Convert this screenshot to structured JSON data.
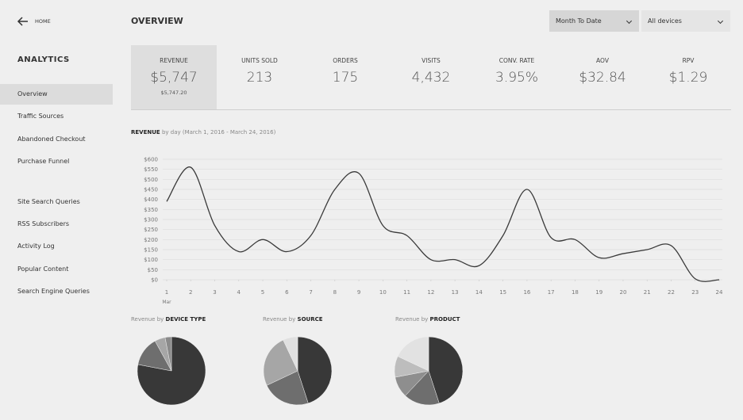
{
  "nav": {
    "back": "HOME",
    "section": "ANALYTICS",
    "groups": [
      [
        {
          "label": "Overview",
          "selected": true
        },
        {
          "label": "Traffic Sources"
        },
        {
          "label": "Abandoned Checkout"
        },
        {
          "label": "Purchase Funnel"
        }
      ],
      [
        {
          "label": "Site Search Queries"
        },
        {
          "label": "RSS Subscribers"
        },
        {
          "label": "Activity Log"
        },
        {
          "label": "Popular Content"
        },
        {
          "label": "Search Engine Queries"
        }
      ]
    ]
  },
  "header": {
    "title": "OVERVIEW",
    "filters": [
      "Month To Date",
      "All devices"
    ]
  },
  "metrics": [
    {
      "label": "REVENUE",
      "value": "$5,747",
      "detail": "$5,747.20",
      "selected": true
    },
    {
      "label": "UNITS SOLD",
      "value": "213"
    },
    {
      "label": "ORDERS",
      "value": "175"
    },
    {
      "label": "VISITS",
      "value": "4,432"
    },
    {
      "label": "CONV. RATE",
      "value": "3.95%"
    },
    {
      "label": "AOV",
      "value": "$32.84"
    },
    {
      "label": "RPV",
      "value": "$1.29"
    }
  ],
  "chart_data": [
    {
      "type": "line",
      "title": "REVENUE",
      "subtitle": "by day (March 1, 2016 - March 24, 2016)",
      "x": [
        1,
        2,
        3,
        4,
        5,
        6,
        7,
        8,
        9,
        10,
        11,
        12,
        13,
        14,
        15,
        16,
        17,
        18,
        19,
        20,
        21,
        22,
        23,
        24
      ],
      "values": [
        390,
        560,
        270,
        140,
        200,
        140,
        220,
        450,
        530,
        270,
        220,
        100,
        100,
        70,
        220,
        450,
        210,
        200,
        110,
        130,
        150,
        170,
        5,
        0
      ],
      "color": "#3a3a3a",
      "grid": true,
      "annotation": "Mar",
      "xlim": [
        1,
        24
      ],
      "xticks": [
        1,
        2,
        3,
        4,
        5,
        6,
        7,
        8,
        9,
        10,
        11,
        12,
        13,
        14,
        15,
        16,
        17,
        18,
        19,
        20,
        21,
        22,
        23,
        24
      ],
      "ylim": [
        0,
        600
      ],
      "yticks": [
        {
          "value": 0,
          "label": "$0"
        },
        {
          "value": 50,
          "label": "$50"
        },
        {
          "value": 100,
          "label": "$100"
        },
        {
          "value": 150,
          "label": "$150"
        },
        {
          "value": 200,
          "label": "$200"
        },
        {
          "value": 250,
          "label": "$250"
        },
        {
          "value": 300,
          "label": "$300"
        },
        {
          "value": 350,
          "label": "$350"
        },
        {
          "value": 400,
          "label": "$400"
        },
        {
          "value": 450,
          "label": "$450"
        },
        {
          "value": 500,
          "label": "$500"
        },
        {
          "value": 550,
          "label": "$550"
        },
        {
          "value": 600,
          "label": "$600"
        }
      ]
    },
    {
      "type": "pie",
      "title_lead": "Revenue by",
      "title": "DEVICE TYPE",
      "values": [
        78,
        14,
        5,
        3
      ],
      "colors": [
        "#383838",
        "#6e6e6e",
        "#a6a6a6",
        "#8a8a8a"
      ]
    },
    {
      "type": "pie",
      "title_lead": "Revenue by",
      "title": "SOURCE",
      "values": [
        45,
        23,
        25,
        7
      ],
      "colors": [
        "#383838",
        "#6e6e6e",
        "#a6a6a6",
        "#e0e0e0"
      ]
    },
    {
      "type": "pie",
      "title_lead": "Revenue by",
      "title": "PRODUCT",
      "values": [
        45,
        17,
        10,
        10,
        18
      ],
      "colors": [
        "#383838",
        "#6e6e6e",
        "#8e8e8e",
        "#bdbdbd",
        "#e2e2e2"
      ]
    }
  ]
}
